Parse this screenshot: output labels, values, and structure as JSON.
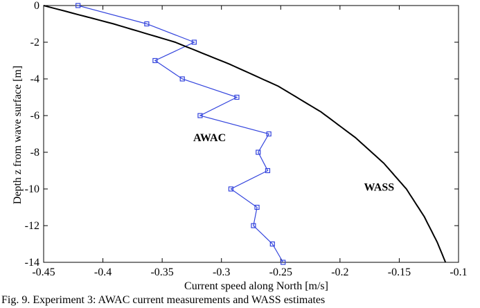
{
  "chart_data": {
    "type": "line",
    "xlabel": "Current speed along North [m/s]",
    "ylabel": "Depth z from wave surface [m]",
    "xlim": [
      -0.45,
      -0.1
    ],
    "ylim": [
      -14,
      0
    ],
    "xticks": [
      -0.45,
      -0.4,
      -0.35,
      -0.3,
      -0.25,
      -0.2,
      -0.15,
      -0.1
    ],
    "xtick_labels": [
      "-0.45",
      "-0.4",
      "-0.35",
      "-0.3",
      "-0.25",
      "-0.2",
      "-0.15",
      "-0.1"
    ],
    "yticks": [
      0,
      -2,
      -4,
      -6,
      -8,
      -10,
      -12,
      -14
    ],
    "ytick_labels": [
      "0",
      "-2",
      "-4",
      "-6",
      "-8",
      "-10",
      "-12",
      "-14"
    ],
    "grid": false,
    "series": [
      {
        "name": "AWAC",
        "color": "#3344dd",
        "marker": "square",
        "x": [
          -0.421,
          -0.363,
          -0.323,
          -0.356,
          -0.333,
          -0.287,
          -0.318,
          -0.26,
          -0.269,
          -0.261,
          -0.292,
          -0.27,
          -0.273,
          -0.257,
          -0.248
        ],
        "y": [
          0,
          -1,
          -2,
          -3,
          -4,
          -5,
          -6,
          -7,
          -8,
          -9,
          -10,
          -11,
          -12,
          -13,
          -14
        ]
      },
      {
        "name": "WASS",
        "color": "#000000",
        "marker": "none",
        "x": [
          -0.45,
          -0.391,
          -0.339,
          -0.293,
          -0.252,
          -0.216,
          -0.187,
          -0.163,
          -0.144,
          -0.129,
          -0.118,
          -0.111
        ],
        "y": [
          0,
          -1,
          -2,
          -3.2,
          -4.4,
          -5.8,
          -7.2,
          -8.6,
          -10,
          -11.5,
          -12.9,
          -14
        ]
      }
    ],
    "annotations": [
      {
        "text": "AWAC",
        "x": -0.31,
        "y": -7.4
      },
      {
        "text": "WASS",
        "x": -0.167,
        "y": -10.1
      }
    ]
  },
  "caption": "Fig. 9.  Experiment 3: AWAC current measurements and WASS estimates"
}
